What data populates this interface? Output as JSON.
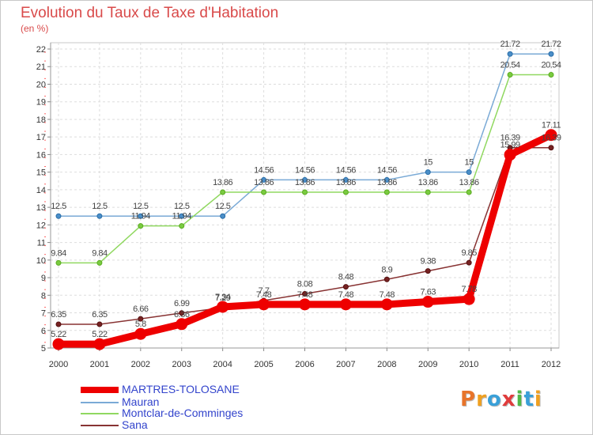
{
  "header": {
    "title": "Evolution du Taux de Taxe d'Habitation",
    "subtitle": "(en %)"
  },
  "brand": {
    "logo_text": "Proxiti",
    "logo_colors": [
      "#e8742a",
      "#f0a020",
      "#3aa0d8",
      "#e03c3c",
      "#50b848",
      "#3aa0d8",
      "#f0a020"
    ]
  },
  "chart_data": {
    "type": "line",
    "title": "Evolution du Taux de Taxe d'Habitation",
    "ylabel": "(en %)",
    "xlabel": "",
    "x": [
      "2000",
      "2001",
      "2002",
      "2003",
      "2004",
      "2005",
      "2006",
      "2007",
      "2008",
      "2009",
      "2010",
      "2011",
      "2012"
    ],
    "ylim": [
      5,
      22
    ],
    "yticks": [
      "5",
      "6",
      "7",
      "8",
      "9",
      "10",
      "11",
      "12",
      "13",
      "14",
      "15",
      "16",
      "17",
      "18",
      "19",
      "20",
      "21",
      "22"
    ],
    "grid": true,
    "legend_position": "bottom-left",
    "series": [
      {
        "name": "MARTRES-TOLOSANE",
        "color": "#ee0000",
        "values": [
          5.22,
          5.22,
          5.8,
          6.36,
          7.34,
          7.48,
          7.48,
          7.48,
          7.48,
          7.63,
          7.78,
          15.99,
          17.11
        ],
        "labels": [
          "5.22",
          "5.22",
          "5.8",
          "6.36",
          "7.34",
          "7.48",
          "7.48",
          "7.48",
          "7.48",
          "7.63",
          "7.78",
          "15.99",
          "17.11"
        ]
      },
      {
        "name": "Mauran",
        "color": "#7aaad6",
        "values": [
          12.5,
          12.5,
          12.5,
          12.5,
          12.5,
          14.56,
          14.56,
          14.56,
          14.56,
          15,
          15,
          21.72,
          21.72
        ],
        "labels": [
          "12.5",
          "12.5",
          "12.5",
          "12.5",
          "12.5",
          "14.56",
          "14.56",
          "14.56",
          "14.56",
          "15",
          "15",
          "21.72",
          "21.72"
        ]
      },
      {
        "name": "Montclar-de-Comminges",
        "color": "#90d860",
        "values": [
          9.84,
          9.84,
          11.94,
          11.94,
          13.86,
          13.86,
          13.86,
          13.86,
          13.86,
          13.86,
          13.86,
          20.54,
          20.54
        ],
        "labels": [
          "9.84",
          "9.84",
          "11.94",
          "11.94",
          "13.86",
          "13.86",
          "13.86",
          "13.86",
          "13.86",
          "13.86",
          "13.86",
          "20.54",
          "20.54"
        ]
      },
      {
        "name": "Sana",
        "color": "#883333",
        "values": [
          6.35,
          6.35,
          6.66,
          6.99,
          7.29,
          7.7,
          8.08,
          8.48,
          8.9,
          9.38,
          9.85,
          16.39,
          16.39
        ],
        "labels": [
          "6.35",
          "6.35",
          "6.66",
          "6.99",
          "7.29",
          "7.7",
          "8.08",
          "8.48",
          "8.9",
          "9.38",
          "9.85",
          "16.39",
          "16.39"
        ]
      }
    ]
  }
}
